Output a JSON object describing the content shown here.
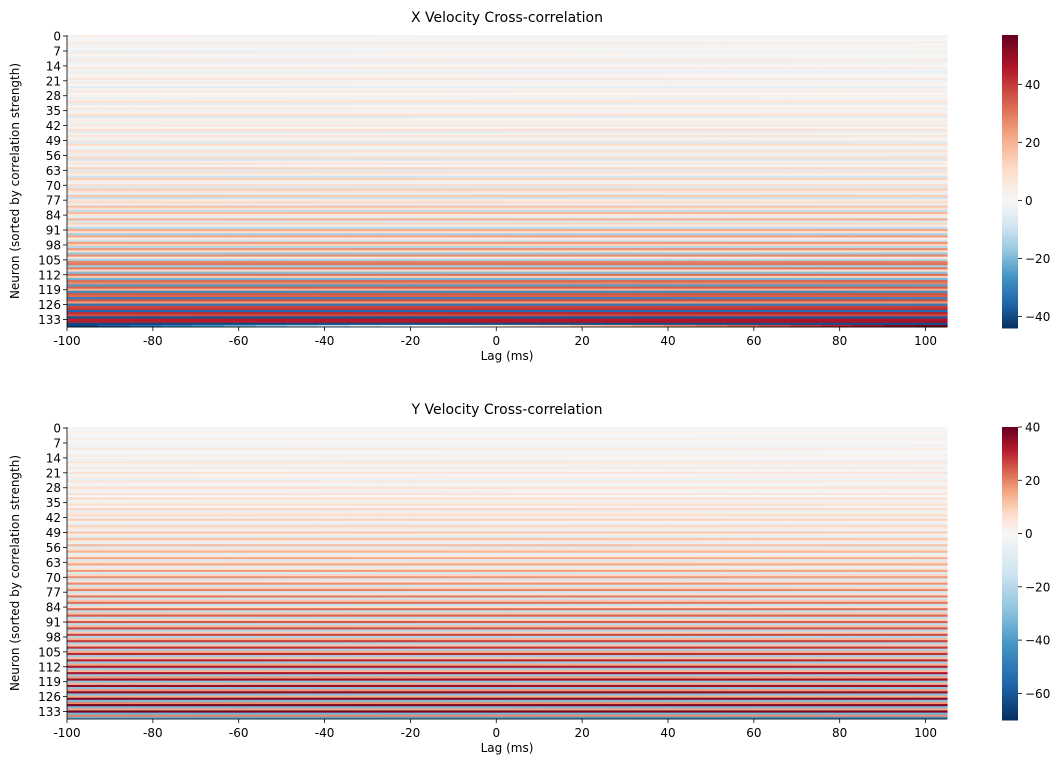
{
  "chart_data": [
    {
      "type": "heatmap",
      "title": "X Velocity Cross-correlation",
      "xlabel": "Lag (ms)",
      "ylabel": "Neuron (sorted by correlation strength)",
      "x_ticks": [
        -100,
        -80,
        -60,
        -40,
        -20,
        0,
        20,
        40,
        60,
        80,
        100
      ],
      "x_range": [
        -100,
        105
      ],
      "y_ticks": [
        0,
        7,
        14,
        21,
        28,
        35,
        42,
        49,
        56,
        63,
        70,
        77,
        84,
        91,
        98,
        105,
        112,
        119,
        126,
        133
      ],
      "neuron_count": 137,
      "colormap": "RdBu_r",
      "color_range": [
        -44,
        57
      ],
      "colorbar_ticks": [
        -40,
        -20,
        0,
        20,
        40
      ],
      "colorbar_labels": [
        "−40",
        "−20",
        "0",
        "20",
        "40"
      ],
      "row_values_start": [
        3,
        -1,
        1,
        5,
        -2,
        2,
        0,
        -3,
        4,
        1,
        -2,
        6,
        -4,
        2,
        0,
        5,
        -1,
        -3,
        3,
        1,
        7,
        -2,
        4,
        0,
        -5,
        2,
        6,
        -1,
        3,
        -3,
        5,
        8,
        -4,
        1,
        6,
        -2,
        3,
        9,
        -6,
        2,
        4,
        -3,
        7,
        1,
        10,
        -5,
        3,
        8,
        -2,
        6,
        -7,
        11,
        2,
        -4,
        9,
        5,
        -3,
        12,
        -8,
        4,
        7,
        -1,
        13,
        -6,
        9,
        3,
        -9,
        14,
        5,
        -2,
        11,
        -7,
        15,
        8,
        -4,
        16,
        -10,
        6,
        12,
        -3,
        17,
        9,
        -11,
        18,
        7,
        -5,
        20,
        -8,
        13,
        4,
        -12,
        21,
        10,
        -15,
        22,
        6,
        -9,
        24,
        14,
        -13,
        25,
        11,
        -17,
        26,
        8,
        -14,
        28,
        30,
        -16,
        29,
        12,
        -19,
        31,
        15,
        -21,
        32,
        27,
        -25,
        34,
        20,
        -28,
        35,
        33,
        -30,
        36,
        24,
        -32,
        38,
        40,
        -35,
        42,
        37,
        -38,
        45,
        44,
        -40,
        -42
      ],
      "row_values_end": [
        2,
        -1,
        0,
        4,
        -1,
        2,
        1,
        -2,
        3,
        0,
        -1,
        5,
        -3,
        2,
        0,
        4,
        -2,
        -3,
        2,
        1,
        6,
        -2,
        3,
        1,
        -4,
        2,
        5,
        -1,
        3,
        -2,
        4,
        7,
        -3,
        1,
        5,
        -2,
        3,
        8,
        -5,
        2,
        4,
        -2,
        6,
        1,
        9,
        -4,
        3,
        7,
        -1,
        5,
        -6,
        10,
        2,
        -3,
        8,
        4,
        -3,
        11,
        -7,
        3,
        6,
        -1,
        12,
        -5,
        8,
        3,
        -8,
        13,
        4,
        -2,
        10,
        -6,
        14,
        7,
        -4,
        15,
        -9,
        5,
        11,
        -3,
        16,
        8,
        -10,
        19,
        6,
        -4,
        21,
        -7,
        12,
        4,
        -11,
        22,
        9,
        -14,
        24,
        5,
        -8,
        26,
        13,
        -12,
        27,
        10,
        -16,
        28,
        7,
        -13,
        29,
        31,
        -15,
        30,
        11,
        -18,
        32,
        14,
        -20,
        33,
        28,
        -24,
        35,
        21,
        -27,
        36,
        34,
        -29,
        37,
        25,
        -31,
        39,
        42,
        -34,
        44,
        38,
        -37,
        47,
        48,
        -39,
        57
      ]
    },
    {
      "type": "heatmap",
      "title": "Y Velocity Cross-correlation",
      "xlabel": "Lag (ms)",
      "ylabel": "Neuron (sorted by correlation strength)",
      "x_ticks": [
        -100,
        -80,
        -60,
        -40,
        -20,
        0,
        20,
        40,
        60,
        80,
        100
      ],
      "x_range": [
        -100,
        105
      ],
      "y_ticks": [
        0,
        7,
        14,
        21,
        28,
        35,
        42,
        49,
        56,
        63,
        70,
        77,
        84,
        91,
        98,
        105,
        112,
        119,
        126,
        133
      ],
      "neuron_count": 137,
      "colormap": "RdBu_r",
      "color_range": [
        -70,
        40
      ],
      "colorbar_ticks": [
        -60,
        -40,
        -20,
        0,
        20,
        40
      ],
      "colorbar_labels": [
        "−60",
        "−40",
        "−20",
        "0",
        "20",
        "40"
      ],
      "row_values_start": [
        1,
        -1,
        2,
        0,
        -2,
        3,
        1,
        -1,
        2,
        -3,
        4,
        0,
        -2,
        3,
        1,
        -4,
        5,
        2,
        -3,
        4,
        0,
        6,
        -2,
        3,
        -5,
        5,
        1,
        -3,
        7,
        2,
        -4,
        6,
        0,
        8,
        -5,
        3,
        7,
        -2,
        9,
        -6,
        4,
        8,
        -3,
        10,
        2,
        -7,
        9,
        5,
        -4,
        11,
        3,
        -8,
        12,
        6,
        -5,
        13,
        -9,
        7,
        14,
        -6,
        4,
        15,
        -10,
        8,
        16,
        -7,
        5,
        17,
        -11,
        9,
        18,
        -12,
        6,
        19,
        -13,
        10,
        20,
        -14,
        7,
        21,
        -15,
        11,
        22,
        -16,
        8,
        23,
        -17,
        12,
        24,
        -18,
        9,
        25,
        -19,
        13,
        26,
        -20,
        10,
        27,
        -21,
        14,
        28,
        -22,
        11,
        29,
        -23,
        15,
        30,
        -24,
        12,
        31,
        -25,
        16,
        32,
        -26,
        13,
        33,
        -27,
        17,
        34,
        -28,
        14,
        35,
        -29,
        18,
        36,
        -30,
        15,
        37,
        -31,
        19,
        38,
        -32,
        16,
        39,
        -33,
        20,
        -35
      ],
      "row_values_end": [
        1,
        -1,
        1,
        0,
        -2,
        2,
        1,
        -1,
        2,
        -2,
        3,
        0,
        -2,
        2,
        1,
        -3,
        4,
        2,
        -2,
        3,
        0,
        5,
        -2,
        2,
        -4,
        4,
        1,
        -3,
        6,
        2,
        -3,
        5,
        0,
        7,
        -4,
        3,
        6,
        -2,
        8,
        -5,
        3,
        7,
        -3,
        9,
        2,
        -6,
        8,
        4,
        -4,
        10,
        3,
        -7,
        11,
        5,
        -5,
        12,
        -8,
        6,
        13,
        -5,
        4,
        14,
        -9,
        7,
        15,
        -6,
        5,
        16,
        -10,
        8,
        17,
        -11,
        6,
        18,
        -12,
        9,
        19,
        -13,
        7,
        20,
        -14,
        10,
        21,
        -15,
        8,
        22,
        -16,
        11,
        23,
        -17,
        9,
        24,
        -18,
        12,
        25,
        -19,
        10,
        26,
        -20,
        13,
        27,
        -21,
        11,
        28,
        -22,
        14,
        29,
        -23,
        12,
        30,
        -24,
        15,
        31,
        -25,
        13,
        32,
        -26,
        16,
        33,
        -27,
        14,
        34,
        -28,
        17,
        35,
        -29,
        15,
        36,
        -30,
        18,
        37,
        -31,
        16,
        38,
        -32,
        19,
        -45
      ]
    }
  ]
}
